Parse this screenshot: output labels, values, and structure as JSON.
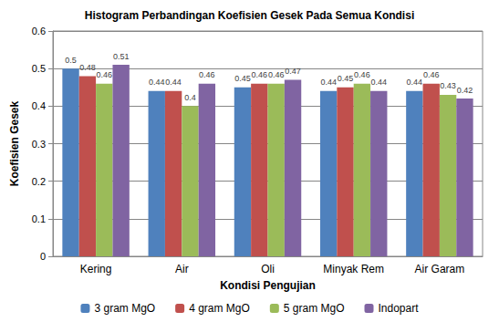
{
  "chart_data": {
    "type": "bar",
    "title": "Histogram Perbandingan Koefisien Gesek Pada Semua Kondisi",
    "x_label": "Kondisi Pengujian",
    "y_label": "Koefisien Gesek",
    "categories": [
      "Kering",
      "Air",
      "Oli",
      "Minyak Rem",
      "Air Garam"
    ],
    "series": [
      {
        "name": "3 gram MgO",
        "color": "#4f81bd",
        "values": [
          0.5,
          0.44,
          0.45,
          0.44,
          0.44
        ]
      },
      {
        "name": "4 gram MgO",
        "color": "#c0504d",
        "values": [
          0.48,
          0.44,
          0.46,
          0.45,
          0.46
        ]
      },
      {
        "name": "5 gram MgO",
        "color": "#9bbb59",
        "values": [
          0.46,
          0.4,
          0.46,
          0.46,
          0.43
        ]
      },
      {
        "name": "Indopart",
        "color": "#8064a2",
        "values": [
          0.51,
          0.46,
          0.47,
          0.44,
          0.42
        ]
      }
    ],
    "ylim": [
      0,
      0.6
    ],
    "yticks": [
      0,
      0.1,
      0.2,
      0.3,
      0.4,
      0.5,
      0.6
    ],
    "grid": true,
    "legend": "bottom",
    "data_labels": true
  }
}
